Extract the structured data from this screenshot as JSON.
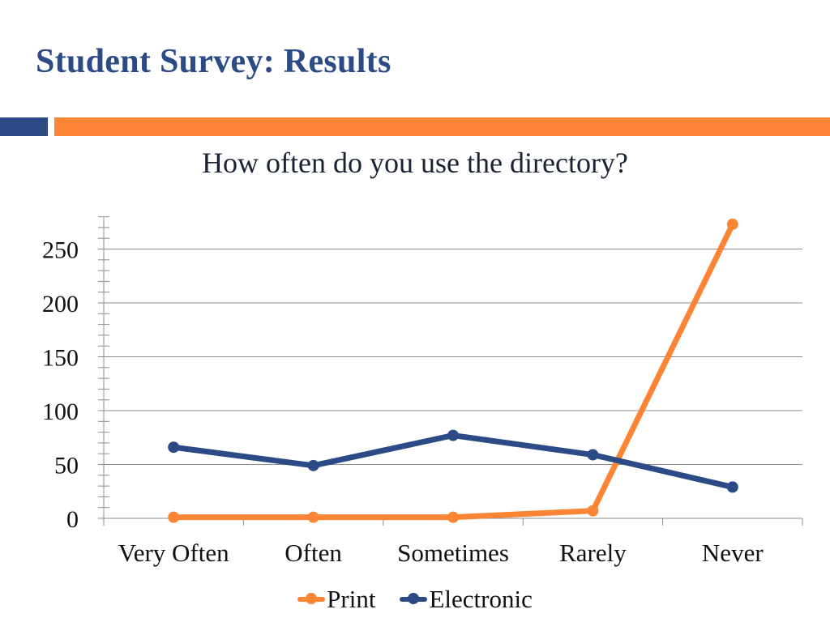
{
  "slide": {
    "title": "Student Survey: Results"
  },
  "colors": {
    "primary": "#2b4a86",
    "accent": "#fb8535"
  },
  "chart_data": {
    "type": "line",
    "title": "How often do you use the directory?",
    "categories": [
      "Very Often",
      "Often",
      "Sometimes",
      "Rarely",
      "Never"
    ],
    "series": [
      {
        "name": "Print",
        "color": "#fb8535",
        "values": [
          1,
          1,
          1,
          7,
          273
        ]
      },
      {
        "name": "Electronic",
        "color": "#2b4a86",
        "values": [
          66,
          49,
          77,
          59,
          29
        ]
      }
    ],
    "ylim": [
      0,
      275
    ],
    "yticks": [
      0,
      50,
      100,
      150,
      200,
      250
    ],
    "xlabel": "",
    "ylabel": "",
    "grid": true,
    "legend": "bottom"
  }
}
